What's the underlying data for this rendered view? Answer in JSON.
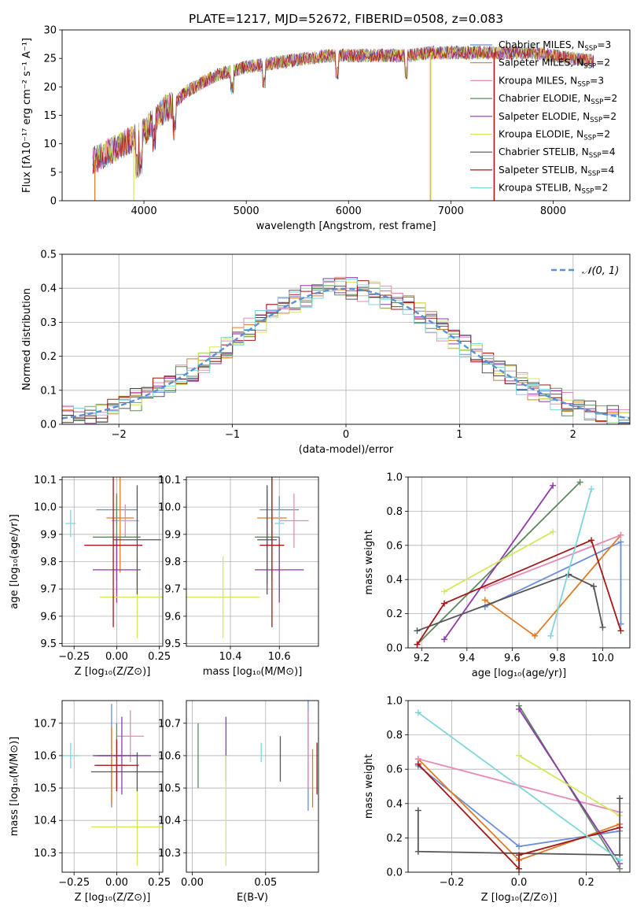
{
  "figure": {
    "suptitle": "PLATE=1217, MJD=52672, FIBERID=0508, z=0.083"
  },
  "colors": {
    "chabrier_miles": "#6a8fd8",
    "salpeter_miles": "#e07b22",
    "kroupa_miles": "#e58ab8",
    "chabrier_elodie": "#5e8a5e",
    "salpeter_elodie": "#8e3aaa",
    "kroupa_elodie": "#d3e85a",
    "chabrier_stelib": "#555555",
    "salpeter_stelib": "#a31818",
    "kroupa_stelib": "#7fd6dc"
  },
  "chart_data": [
    {
      "id": "spectrum",
      "type": "line",
      "title": "PLATE=1217, MJD=52672, FIBERID=0508, z=0.083",
      "xlabel": "wavelength [Angstrom, rest frame]",
      "ylabel": "Flux [fλ10⁻¹⁷ erg cm⁻² s⁻¹ A⁻¹]",
      "xlim": [
        3200,
        8750
      ],
      "ylim": [
        0,
        30
      ],
      "xticks": [
        4000,
        5000,
        6000,
        7000,
        8000
      ],
      "yticks": [
        0,
        5,
        10,
        15,
        20,
        25,
        30
      ],
      "legend_position": "right",
      "legend": [
        {
          "base": "Chabrier MILES, N",
          "sub": "SSP",
          "tail": "=3",
          "color": "#6a8fd8"
        },
        {
          "base": "Salpeter MILES, N",
          "sub": "SSP",
          "tail": "=2",
          "color": "#e07b22"
        },
        {
          "base": "Kroupa MILES, N",
          "sub": "SSP",
          "tail": "=3",
          "color": "#e58ab8"
        },
        {
          "base": "Chabrier ELODIE, N",
          "sub": "SSP",
          "tail": "=2",
          "color": "#5e8a5e"
        },
        {
          "base": "Salpeter ELODIE, N",
          "sub": "SSP",
          "tail": "=2",
          "color": "#8e3aaa"
        },
        {
          "base": "Kroupa ELODIE, N",
          "sub": "SSP",
          "tail": "=2",
          "color": "#d3e85a"
        },
        {
          "base": "Chabrier STELIB, N",
          "sub": "SSP",
          "tail": "=4",
          "color": "#555555"
        },
        {
          "base": "Salpeter STELIB, N",
          "sub": "SSP",
          "tail": "=4",
          "color": "#a31818"
        },
        {
          "base": "Kroupa STELIB, N",
          "sub": "SSP",
          "tail": "=2",
          "color": "#7fd6dc"
        }
      ],
      "continuum": {
        "x": [
          3500,
          3600,
          3700,
          3800,
          3900,
          4000,
          4100,
          4200,
          4300,
          4400,
          4500,
          4600,
          4700,
          4800,
          4900,
          5000,
          5200,
          5400,
          5600,
          5800,
          6000,
          6200,
          6400,
          6600,
          6800,
          7000,
          7200,
          7400,
          7600,
          7800,
          8000,
          8200,
          8400
        ],
        "y": [
          7,
          8,
          9,
          10,
          11,
          12,
          14,
          16,
          17,
          19,
          20,
          21,
          22,
          22.5,
          23,
          23.5,
          24,
          24.5,
          25,
          25.5,
          25.5,
          25.5,
          25.5,
          25.5,
          26,
          26,
          26,
          26,
          26,
          26,
          25.5,
          25,
          24.5
        ]
      }
    },
    {
      "id": "residuals",
      "type": "bar",
      "xlabel": "(data-model)/error",
      "ylabel": "Normed distribution",
      "xlim": [
        -2.5,
        2.5
      ],
      "ylim": [
        0,
        0.5
      ],
      "xticks": [
        -2,
        -1,
        0,
        1,
        2
      ],
      "xtick_labels": [
        "−2",
        "−1",
        "0",
        "1",
        "2"
      ],
      "yticks": [
        0,
        0.1,
        0.2,
        0.3,
        0.4,
        0.5
      ],
      "ytick_labels": [
        "0.0",
        "0.1",
        "0.2",
        "0.3",
        "0.4",
        "0.5"
      ],
      "grid": true,
      "legend_position": "top-right",
      "legend_label": "𝒩(0, 1)",
      "bin_width": 0.1,
      "gaussian": {
        "mean": 0,
        "sigma": 1,
        "color": "#5b8fd6"
      }
    },
    {
      "id": "age-vs-z",
      "type": "scatter",
      "xlabel": "Z [log₁₀(Z/Z⊙)]",
      "ylabel": "age  [log₁₀(age/yr)]",
      "xlim": [
        -0.32,
        0.27
      ],
      "ylim": [
        9.49,
        10.11
      ],
      "xticks": [
        -0.25,
        0,
        0.25
      ],
      "xtick_labels": [
        "−0.25",
        "0.00",
        "0.25"
      ],
      "yticks": [
        9.5,
        9.6,
        9.7,
        9.8,
        9.9,
        10.0,
        10.1
      ],
      "ytick_labels": [
        "9.5",
        "9.6",
        "9.7",
        "9.8",
        "9.9",
        "10.0",
        "10.1"
      ],
      "grid": true,
      "points": [
        {
          "x": 0.0,
          "y": 9.99,
          "ex": 0.12,
          "ey": 0.05,
          "color": "#6a8fd8"
        },
        {
          "x": 0.02,
          "y": 9.96,
          "ex": 0.08,
          "ey": 0.2,
          "color": "#e07b22"
        },
        {
          "x": 0.05,
          "y": 9.95,
          "ex": 0.08,
          "ey": 0.06,
          "color": "#e58ab8"
        },
        {
          "x": 0.0,
          "y": 9.89,
          "ex": 0.14,
          "ey": 0.16,
          "color": "#5e8a5e"
        },
        {
          "x": 0.0,
          "y": 9.77,
          "ex": 0.14,
          "ey": 0.12,
          "color": "#8e3aaa"
        },
        {
          "x": 0.12,
          "y": 9.67,
          "ex": 0.22,
          "ey": 0.15,
          "color": "#d3e85a"
        },
        {
          "x": 0.12,
          "y": 9.88,
          "ex": 0.14,
          "ey": 0.2,
          "color": "#555555"
        },
        {
          "x": -0.02,
          "y": 9.86,
          "ex": 0.17,
          "ey": 0.3,
          "color": "#a31818"
        },
        {
          "x": -0.27,
          "y": 9.94,
          "ex": 0.03,
          "ey": 0.05,
          "color": "#7fd6dc"
        }
      ]
    },
    {
      "id": "age-vs-mass",
      "type": "scatter",
      "xlabel": "mass [log₁₀(M/M⊙)]",
      "xlim": [
        10.22,
        10.76
      ],
      "ylim": [
        9.49,
        10.11
      ],
      "xticks": [
        10.4,
        10.6
      ],
      "xtick_labels": [
        "10.4",
        "10.6"
      ],
      "yticks": [
        9.5,
        9.6,
        9.7,
        9.8,
        9.9,
        10.0,
        10.1
      ],
      "ytick_labels": [
        "9.5",
        "9.6",
        "9.7",
        "9.8",
        "9.9",
        "10.0",
        "10.1"
      ],
      "grid": true,
      "points": [
        {
          "x": 10.6,
          "y": 9.99,
          "ex": 0.08,
          "ey": 0.05,
          "color": "#6a8fd8"
        },
        {
          "x": 10.57,
          "y": 9.96,
          "ex": 0.06,
          "ey": 0.23,
          "color": "#e07b22"
        },
        {
          "x": 10.66,
          "y": 9.95,
          "ex": 0.06,
          "ey": 0.1,
          "color": "#e58ab8"
        },
        {
          "x": 10.55,
          "y": 9.89,
          "ex": 0.05,
          "ey": 0.17,
          "color": "#5e8a5e"
        },
        {
          "x": 10.6,
          "y": 9.77,
          "ex": 0.1,
          "ey": 0.12,
          "color": "#8e3aaa"
        },
        {
          "x": 10.37,
          "y": 9.67,
          "ex": 0.15,
          "ey": 0.15,
          "color": "#d3e85a"
        },
        {
          "x": 10.55,
          "y": 9.88,
          "ex": 0.04,
          "ey": 0.2,
          "color": "#555555"
        },
        {
          "x": 10.57,
          "y": 9.86,
          "ex": 0.05,
          "ey": 0.3,
          "color": "#a31818"
        },
        {
          "x": 10.6,
          "y": 9.94,
          "ex": 0.02,
          "ey": 0.05,
          "color": "#7fd6dc"
        }
      ]
    },
    {
      "id": "weight-vs-age",
      "type": "line",
      "xlabel": "age  [log₁₀(age/yr)]",
      "ylabel": "mass weight",
      "xlim": [
        9.14,
        10.12
      ],
      "ylim": [
        0,
        1
      ],
      "xticks": [
        9.2,
        9.4,
        9.6,
        9.8,
        10.0
      ],
      "xtick_labels": [
        "9.2",
        "9.4",
        "9.6",
        "9.8",
        "10.0"
      ],
      "yticks": [
        0,
        0.2,
        0.4,
        0.6,
        0.8,
        1.0
      ],
      "ytick_labels": [
        "0.0",
        "0.2",
        "0.4",
        "0.6",
        "0.8",
        "1.0"
      ],
      "grid": true,
      "series": [
        {
          "color": "#6a8fd8",
          "x": [
            9.48,
            10.08,
            10.08
          ],
          "y": [
            0.24,
            0.62,
            0.14
          ]
        },
        {
          "color": "#e07b22",
          "x": [
            9.48,
            9.7,
            10.08
          ],
          "y": [
            0.28,
            0.07,
            0.66
          ]
        },
        {
          "color": "#e58ab8",
          "x": [
            9.48,
            10.08
          ],
          "y": [
            0.35,
            0.66
          ]
        },
        {
          "color": "#5e8a5e",
          "x": [
            9.18,
            9.9
          ],
          "y": [
            0.02,
            0.97
          ]
        },
        {
          "color": "#8e3aaa",
          "x": [
            9.3,
            9.78
          ],
          "y": [
            0.05,
            0.95
          ]
        },
        {
          "color": "#d3e85a",
          "x": [
            9.3,
            9.78
          ],
          "y": [
            0.33,
            0.68
          ]
        },
        {
          "color": "#555555",
          "x": [
            9.18,
            9.85,
            9.96,
            10.0
          ],
          "y": [
            0.1,
            0.43,
            0.36,
            0.12
          ]
        },
        {
          "color": "#a31818",
          "x": [
            9.18,
            9.3,
            9.95,
            10.08
          ],
          "y": [
            0.02,
            0.26,
            0.63,
            0.1
          ]
        },
        {
          "color": "#7fd6dc",
          "x": [
            9.77,
            9.95
          ],
          "y": [
            0.07,
            0.93
          ]
        }
      ]
    },
    {
      "id": "mass-vs-z",
      "type": "scatter",
      "xlabel": "Z [log₁₀(Z/Z⊙)]",
      "ylabel": "mass [log₁₀(M/M⊙)]",
      "xlim": [
        -0.32,
        0.27
      ],
      "ylim": [
        10.24,
        10.77
      ],
      "xticks": [
        -0.25,
        0,
        0.25
      ],
      "xtick_labels": [
        "−0.25",
        "0.00",
        "0.25"
      ],
      "yticks": [
        10.3,
        10.4,
        10.5,
        10.6,
        10.7
      ],
      "ytick_labels": [
        "10.3",
        "10.4",
        "10.5",
        "10.6",
        "10.7"
      ],
      "grid": true,
      "points": [
        {
          "x": -0.03,
          "y": 10.6,
          "ex": 0.07,
          "ey": 0.16,
          "color": "#6a8fd8"
        },
        {
          "x": -0.03,
          "y": 10.57,
          "ex": 0.09,
          "ey": 0.12,
          "color": "#e07b22"
        },
        {
          "x": 0.08,
          "y": 10.66,
          "ex": 0.08,
          "ey": 0.08,
          "color": "#e58ab8"
        },
        {
          "x": 0.0,
          "y": 10.6,
          "ex": 0.12,
          "ey": 0.1,
          "color": "#5e8a5e"
        },
        {
          "x": 0.03,
          "y": 10.6,
          "ex": 0.17,
          "ey": 0.12,
          "color": "#8e3aaa"
        },
        {
          "x": 0.12,
          "y": 10.38,
          "ex": 0.27,
          "ey": 0.12,
          "color": "#d3e85a"
        },
        {
          "x": 0.12,
          "y": 10.55,
          "ex": 0.27,
          "ey": 0.06,
          "color": "#555555"
        },
        {
          "x": 0.0,
          "y": 10.57,
          "ex": 0.13,
          "ey": 0.08,
          "color": "#a31818"
        },
        {
          "x": -0.27,
          "y": 10.6,
          "ex": 0.05,
          "ey": 0.04,
          "color": "#7fd6dc"
        }
      ]
    },
    {
      "id": "mass-vs-ebv",
      "type": "scatter",
      "xlabel": "E(B-V)",
      "xlim": [
        -0.004,
        0.086
      ],
      "ylim": [
        10.24,
        10.77
      ],
      "xticks": [
        0.0,
        0.05
      ],
      "xtick_labels": [
        "0.00",
        "0.05"
      ],
      "yticks": [
        10.3,
        10.4,
        10.5,
        10.6,
        10.7
      ],
      "ytick_labels": [
        "10.3",
        "10.4",
        "10.5",
        "10.6",
        "10.7"
      ],
      "grid": true,
      "points": [
        {
          "x": 0.079,
          "y": 10.6,
          "ex": 0,
          "ey": 0.17,
          "color": "#6a8fd8"
        },
        {
          "x": 0.082,
          "y": 10.53,
          "ex": 0,
          "ey": 0.09,
          "color": "#e07b22"
        },
        {
          "x": 0.079,
          "y": 10.62,
          "ex": 0,
          "ey": 0.12,
          "color": "#e58ab8"
        },
        {
          "x": 0.004,
          "y": 10.6,
          "ex": 0,
          "ey": 0.1,
          "color": "#5e8a5e"
        },
        {
          "x": 0.023,
          "y": 10.62,
          "ex": 0,
          "ey": 0.1,
          "color": "#8e3aaa"
        },
        {
          "x": 0.023,
          "y": 10.43,
          "ex": 0,
          "ey": 0.17,
          "color": "#d3e85a"
        },
        {
          "x": 0.06,
          "y": 10.59,
          "ex": 0,
          "ey": 0.07,
          "color": "#555555"
        },
        {
          "x": 0.085,
          "y": 10.56,
          "ex": 0,
          "ey": 0.08,
          "color": "#a31818"
        },
        {
          "x": 0.047,
          "y": 10.61,
          "ex": 0,
          "ey": 0.03,
          "color": "#7fd6dc"
        }
      ]
    },
    {
      "id": "weight-vs-z",
      "type": "line",
      "xlabel": "Z [log₁₀(Z/Z⊙)]",
      "ylabel": "mass weight",
      "xlim": [
        -0.33,
        0.33
      ],
      "ylim": [
        0,
        1
      ],
      "xticks": [
        -0.2,
        0.0,
        0.2
      ],
      "xtick_labels": [
        "−0.2",
        "0.0",
        "0.2"
      ],
      "yticks": [
        0,
        0.2,
        0.4,
        0.6,
        0.8,
        1.0
      ],
      "ytick_labels": [
        "0.0",
        "0.2",
        "0.4",
        "0.6",
        "0.8",
        "1.0"
      ],
      "grid": true,
      "series": [
        {
          "color": "#6a8fd8",
          "x": [
            -0.3,
            0.0,
            0.3
          ],
          "y": [
            0.62,
            0.15,
            0.24
          ]
        },
        {
          "color": "#e07b22",
          "x": [
            -0.3,
            0.0,
            0.3
          ],
          "y": [
            0.66,
            0.07,
            0.28
          ]
        },
        {
          "color": "#e58ab8",
          "x": [
            -0.3,
            0.3
          ],
          "y": [
            0.66,
            0.35
          ]
        },
        {
          "color": "#5e8a5e",
          "x": [
            0.0,
            0.3
          ],
          "y": [
            0.97,
            0.02
          ]
        },
        {
          "color": "#8e3aaa",
          "x": [
            0.0,
            0.3
          ],
          "y": [
            0.95,
            0.05
          ]
        },
        {
          "color": "#d3e85a",
          "x": [
            0.0,
            0.3
          ],
          "y": [
            0.68,
            0.33
          ]
        },
        {
          "color": "#555555",
          "x": [
            -0.3,
            -0.3,
            0.3,
            0.3
          ],
          "y": [
            0.36,
            0.12,
            0.1,
            0.43
          ]
        },
        {
          "color": "#a31818",
          "x": [
            -0.3,
            0.0,
            0.0,
            0.3
          ],
          "y": [
            0.63,
            0.02,
            0.1,
            0.26
          ]
        },
        {
          "color": "#7fd6dc",
          "x": [
            -0.3,
            0.3
          ],
          "y": [
            0.93,
            0.07
          ]
        }
      ]
    }
  ]
}
